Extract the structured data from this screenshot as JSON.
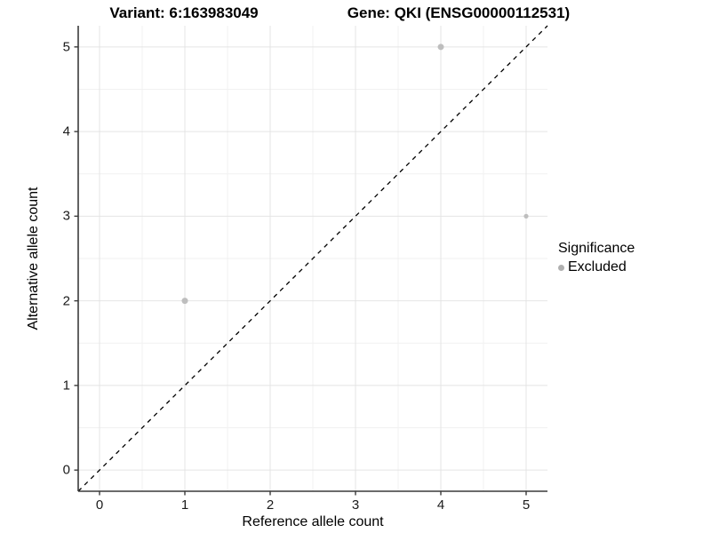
{
  "titles": {
    "left": "Variant: 6:163983049",
    "right": "Gene: QKI (ENSG00000112531)"
  },
  "chart_data": {
    "type": "scatter",
    "title_left": "Variant: 6:163983049",
    "title_right": "Gene: QKI (ENSG00000112531)",
    "xlabel": "Reference allele count",
    "ylabel": "Alternative allele count",
    "xlim": [
      -0.25,
      5.25
    ],
    "ylim": [
      -0.25,
      5.25
    ],
    "x_ticks": [
      0,
      1,
      2,
      3,
      4,
      5
    ],
    "y_ticks": [
      0,
      1,
      2,
      3,
      4,
      5
    ],
    "minor_gridlines": [
      0.5,
      1.5,
      2.5,
      3.5,
      4.5
    ],
    "grid": "major and minor, light gray on white",
    "series": [
      {
        "name": "Excluded",
        "color": "#bebebe",
        "points": [
          {
            "x": 1,
            "y": 2,
            "r": 3.5
          },
          {
            "x": 4,
            "y": 5,
            "r": 3.5
          },
          {
            "x": 5,
            "y": 3,
            "r": 2.6
          }
        ]
      }
    ],
    "reference_line": {
      "kind": "identity y=x diagonal",
      "style": "dashed",
      "color": "#000000"
    },
    "legend": {
      "title": "Significance",
      "position": "right",
      "items": [
        {
          "label": "Excluded",
          "color": "#b0b0b0"
        }
      ]
    }
  },
  "colors": {
    "background": "#ffffff",
    "grid_major": "#e4e4e4",
    "grid_minor": "#f1f1f1",
    "axis_line": "#3a3a3a",
    "tick_label": "#1a1a1a",
    "point": "#bebebe"
  }
}
